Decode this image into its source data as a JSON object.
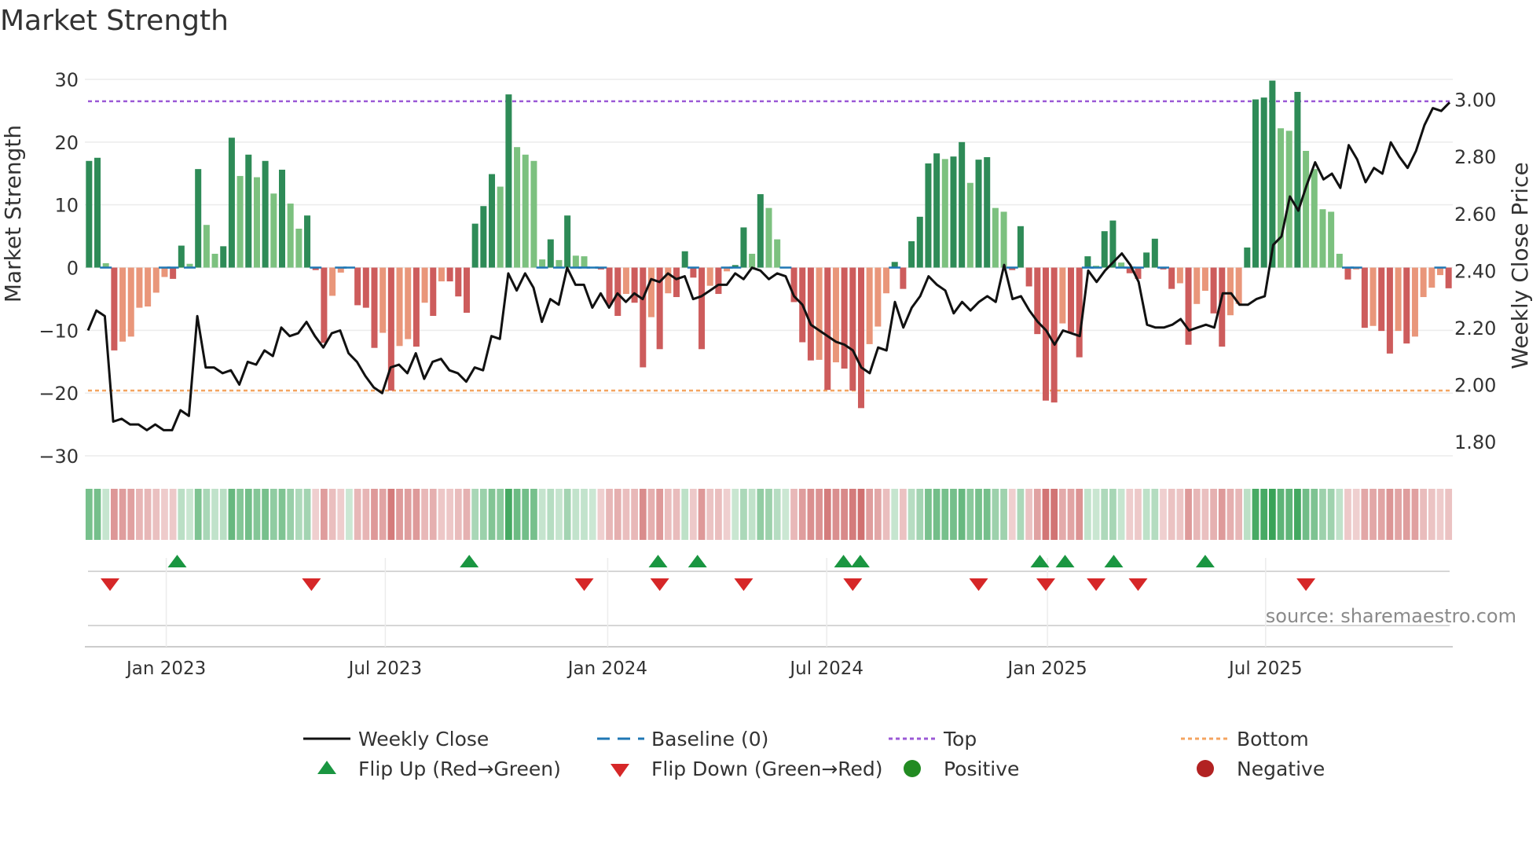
{
  "chart_data": {
    "type": "bar",
    "title": "Market Strength",
    "ylabel_left": "Market Strength",
    "ylabel_right": "Weekly Close Price",
    "source": "source: sharemaestro.com",
    "left_axis": {
      "ylim": [
        -32,
        32
      ],
      "ticks": [
        30,
        20,
        10,
        0,
        -10,
        -20,
        -30
      ],
      "tick_labels": [
        "30",
        "20",
        "10",
        "0",
        "−10",
        "−20",
        "−30"
      ]
    },
    "right_axis": {
      "ylim": [
        1.706,
        3.115
      ],
      "ticks": [
        3.0,
        2.8,
        2.6,
        2.4,
        2.2,
        2.0,
        1.8
      ],
      "tick_labels": [
        "3.00",
        "2.80",
        "2.60",
        "2.40",
        "2.20",
        "2.00",
        "1.80"
      ]
    },
    "x_axis": {
      "week_range": [
        0,
        158
      ],
      "month_ticks": [
        {
          "label": "Jan 2023",
          "week": 9.2
        },
        {
          "label": "Jul 2023",
          "week": 35.3
        },
        {
          "label": "Jan 2024",
          "week": 61.8
        },
        {
          "label": "Jul 2024",
          "week": 87.9
        },
        {
          "label": "Jan 2025",
          "week": 114.2
        },
        {
          "label": "Jul 2025",
          "week": 140.2
        }
      ]
    },
    "top_level": 26.5,
    "bottom_level": -19.6,
    "colors": {
      "strong_pos": "#2e8b57",
      "weak_pos": "#7cc17f",
      "strong_neg": "#cd5c5c",
      "weak_neg": "#e9967a",
      "line": "#111111",
      "baseline": "#1f77b4",
      "top": "#9b59d6",
      "bottom": "#f4a460",
      "flip_up": "#1a9641",
      "flip_down": "#d62728",
      "positive_dot": "#228b22",
      "negative_dot": "#b22222",
      "grid": "#ececec",
      "text": "#333333",
      "source_text": "#8a8a8a"
    },
    "strength_values": [
      17,
      17.5,
      0.7,
      -13.2,
      -11.8,
      -11,
      -6.4,
      -6.2,
      -4,
      -1.5,
      -1.8,
      3.5,
      0.6,
      15.7,
      6.8,
      2.2,
      3.4,
      20.7,
      14.6,
      18,
      14.4,
      17,
      11.8,
      15.6,
      10.2,
      6.2,
      8.3,
      -0.4,
      -12,
      -4.5,
      -0.8,
      0.1,
      -6,
      -6.4,
      -12.8,
      -10.4,
      -19.6,
      -12.5,
      -11.4,
      -12.6,
      -5.6,
      -7.7,
      -2.2,
      -2.2,
      -4.6,
      -7.2,
      7,
      9.8,
      14.9,
      12.9,
      27.6,
      19.2,
      18,
      17,
      1.3,
      4.5,
      1.2,
      8.3,
      1.9,
      1.8,
      0.1,
      -0.3,
      -5.9,
      -7.7,
      -4.2,
      -5.6,
      -15.9,
      -7.9,
      -13,
      -4.1,
      -4.7,
      2.6,
      -1.6,
      -13,
      -2.9,
      -4.2,
      -0.6,
      0.4,
      6.4,
      2.2,
      11.7,
      9.5,
      4.5,
      0.1,
      -5.5,
      -11.9,
      -14.8,
      -14.7,
      -19.5,
      -15.1,
      -16.1,
      -19.6,
      -22.4,
      -12.2,
      -9.4,
      -4.1,
      0.9,
      -3.4,
      4.2,
      8.1,
      16.6,
      18.2,
      17.3,
      17.7,
      20,
      13.5,
      17.2,
      17.6,
      9.5,
      8.9,
      -0.4,
      6.6,
      -3,
      -10.6,
      -21.2,
      -21.5,
      -8.9,
      -10.3,
      -14.3,
      1.8,
      0.3,
      5.8,
      7.5,
      0.8,
      -0.9,
      -1.8,
      2.4,
      4.6,
      -0.3,
      -3.4,
      -2.5,
      -12.3,
      -5.8,
      -3.7,
      -7.3,
      -12.6,
      -7.6,
      -5.8,
      3.2,
      26.8,
      27.1,
      29.8,
      22.2,
      21.8,
      28,
      18.6,
      15.7,
      9.3,
      8.9,
      2.2,
      -1.9,
      -0.3,
      -9.6,
      -9.3,
      -10.1,
      -13.7,
      -10.1,
      -12.1,
      -11,
      -4.7,
      -3.2,
      -1.2,
      -3.3
    ],
    "close_values": [
      2.19,
      2.26,
      2.24,
      1.87,
      1.88,
      1.86,
      1.86,
      1.84,
      1.86,
      1.84,
      1.84,
      1.91,
      1.89,
      2.24,
      2.06,
      2.06,
      2.04,
      2.05,
      2.0,
      2.08,
      2.07,
      2.12,
      2.1,
      2.2,
      2.17,
      2.18,
      2.22,
      2.17,
      2.13,
      2.18,
      2.19,
      2.11,
      2.08,
      2.03,
      1.99,
      1.97,
      2.06,
      2.07,
      2.04,
      2.11,
      2.02,
      2.08,
      2.09,
      2.05,
      2.04,
      2.01,
      2.06,
      2.05,
      2.17,
      2.16,
      2.39,
      2.33,
      2.39,
      2.34,
      2.22,
      2.3,
      2.28,
      2.41,
      2.35,
      2.35,
      2.27,
      2.32,
      2.27,
      2.32,
      2.29,
      2.32,
      2.3,
      2.37,
      2.36,
      2.39,
      2.37,
      2.38,
      2.3,
      2.31,
      2.33,
      2.35,
      2.35,
      2.39,
      2.37,
      2.41,
      2.4,
      2.37,
      2.39,
      2.38,
      2.31,
      2.28,
      2.21,
      2.19,
      2.17,
      2.15,
      2.14,
      2.12,
      2.06,
      2.04,
      2.13,
      2.12,
      2.29,
      2.2,
      2.27,
      2.31,
      2.38,
      2.35,
      2.33,
      2.25,
      2.29,
      2.26,
      2.29,
      2.31,
      2.29,
      2.42,
      2.3,
      2.31,
      2.26,
      2.22,
      2.19,
      2.14,
      2.19,
      2.18,
      2.17,
      2.4,
      2.36,
      2.4,
      2.43,
      2.46,
      2.42,
      2.36,
      2.21,
      2.2,
      2.2,
      2.21,
      2.23,
      2.19,
      2.2,
      2.21,
      2.2,
      2.32,
      2.32,
      2.28,
      2.28,
      2.3,
      2.31,
      2.49,
      2.52,
      2.66,
      2.61,
      2.7,
      2.78,
      2.72,
      2.74,
      2.69,
      2.84,
      2.79,
      2.71,
      2.76,
      2.74,
      2.85,
      2.8,
      2.76,
      2.82,
      2.91,
      2.97,
      2.96,
      2.99
    ],
    "flip_up_weeks": [
      10.5,
      45.3,
      67.8,
      72.5,
      89.9,
      91.9,
      113.3,
      116.3,
      122.1,
      133.0
    ],
    "flip_down_weeks": [
      2.5,
      26.5,
      59,
      68,
      78,
      91,
      106,
      114,
      120,
      125,
      145
    ],
    "legend": {
      "weekly_close": "Weekly Close",
      "baseline": "Baseline (0)",
      "top": "Top",
      "bottom": "Bottom",
      "flip_up": "Flip Up (Red→Green)",
      "flip_down": "Flip Down (Green→Red)",
      "positive": "Positive",
      "negative": "Negative"
    }
  }
}
